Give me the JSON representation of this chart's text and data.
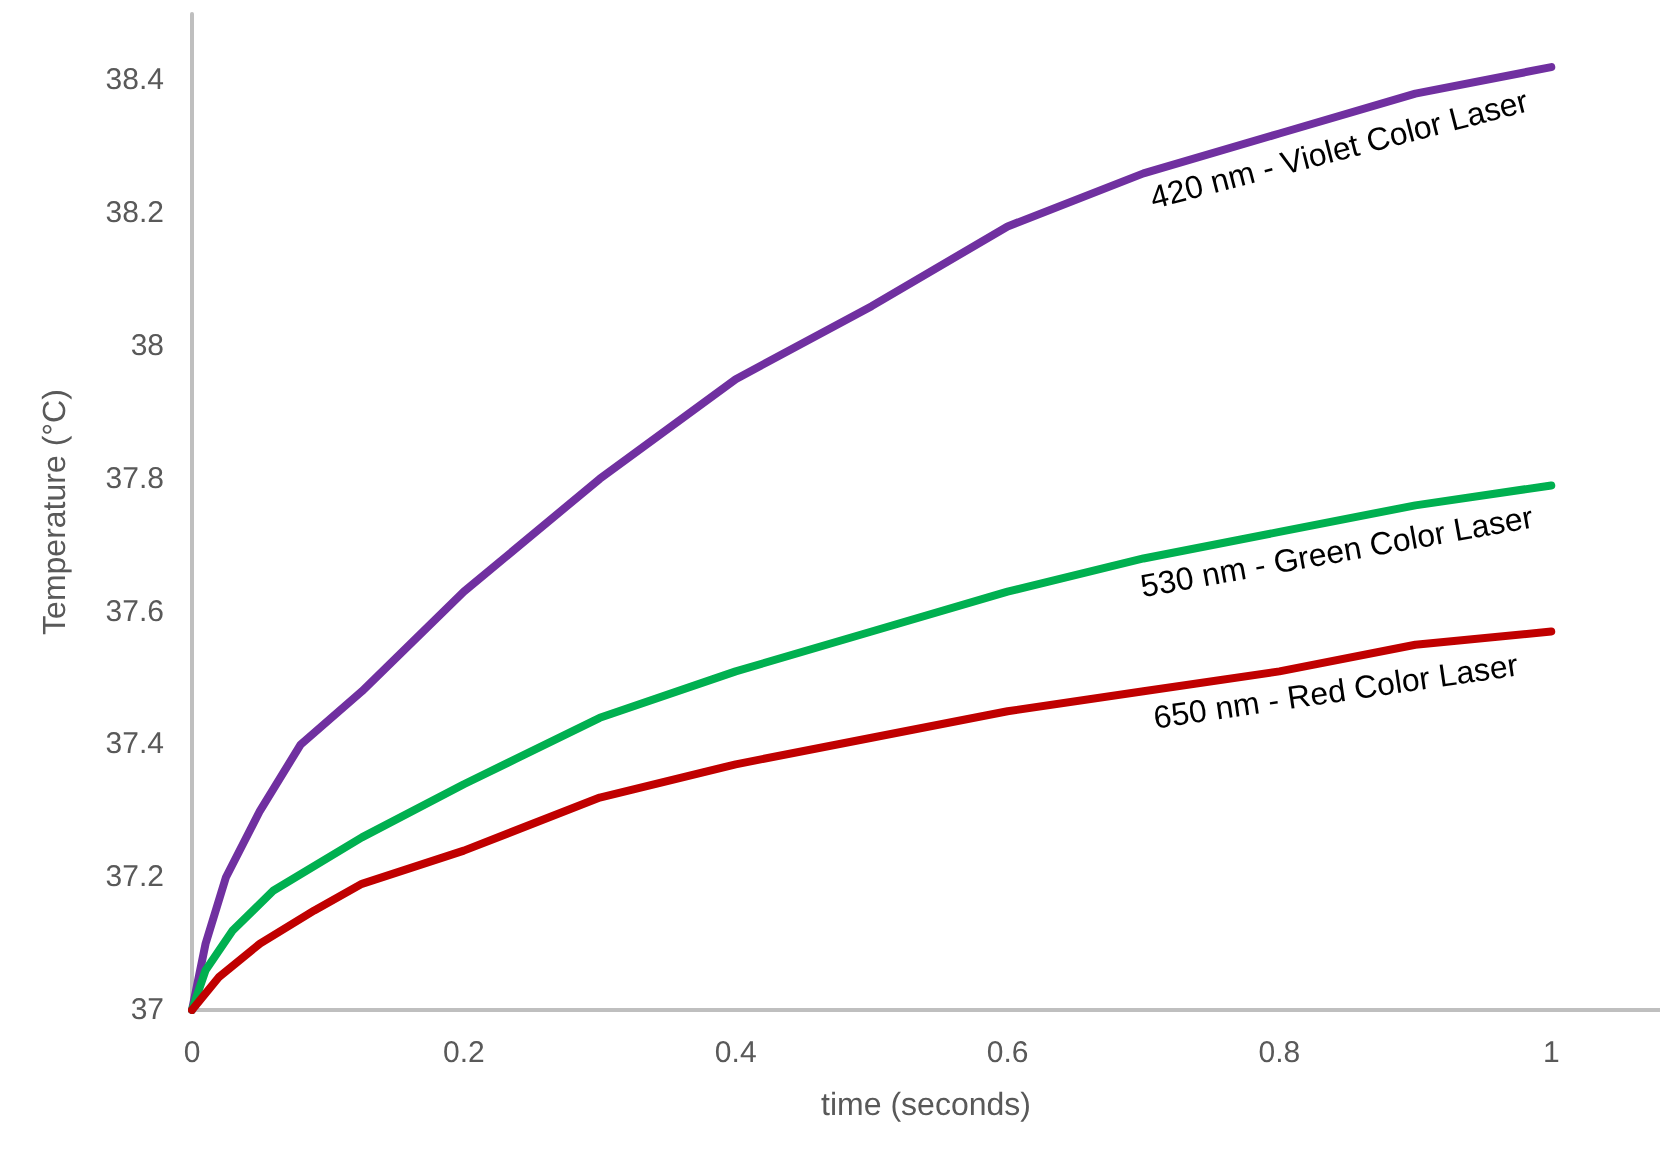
{
  "chart_data": {
    "type": "line",
    "xlabel": "time (seconds)",
    "ylabel": "Temperature (°C)",
    "xlim": [
      0,
      1.08
    ],
    "xticks": [
      0,
      0.2,
      0.4,
      0.6,
      0.8,
      1
    ],
    "ylim": [
      37,
      38.5
    ],
    "yticks": [
      37,
      37.2,
      37.4,
      37.6,
      37.8,
      38,
      38.2,
      38.4
    ],
    "grid": false,
    "marker": "none",
    "line_style": "solid",
    "series": [
      {
        "name": "420 nm - Violet Color Laser",
        "color": "#7030a0",
        "x": [
          0,
          0.01,
          0.025,
          0.05,
          0.08,
          0.125,
          0.2,
          0.3,
          0.4,
          0.5,
          0.6,
          0.7,
          0.8,
          0.9,
          1.0
        ],
        "values": [
          37.0,
          37.1,
          37.2,
          37.3,
          37.4,
          37.48,
          37.63,
          37.8,
          37.95,
          38.06,
          38.18,
          38.26,
          38.32,
          38.38,
          38.42
        ]
      },
      {
        "name": "530 nm - Green Color Laser",
        "color": "#00b050",
        "x": [
          0,
          0.01,
          0.03,
          0.06,
          0.125,
          0.2,
          0.3,
          0.4,
          0.5,
          0.6,
          0.7,
          0.8,
          0.9,
          1.0
        ],
        "values": [
          37.0,
          37.06,
          37.12,
          37.18,
          37.26,
          37.34,
          37.44,
          37.51,
          37.57,
          37.63,
          37.68,
          37.72,
          37.76,
          37.79
        ]
      },
      {
        "name": "650 nm - Red Color Laser",
        "color": "#c00000",
        "x": [
          0,
          0.02,
          0.05,
          0.09,
          0.125,
          0.2,
          0.3,
          0.4,
          0.5,
          0.6,
          0.7,
          0.8,
          0.9,
          1.0
        ],
        "values": [
          37.0,
          37.05,
          37.1,
          37.15,
          37.19,
          37.24,
          37.32,
          37.37,
          37.41,
          37.45,
          37.48,
          37.51,
          37.55,
          37.57
        ]
      }
    ]
  }
}
